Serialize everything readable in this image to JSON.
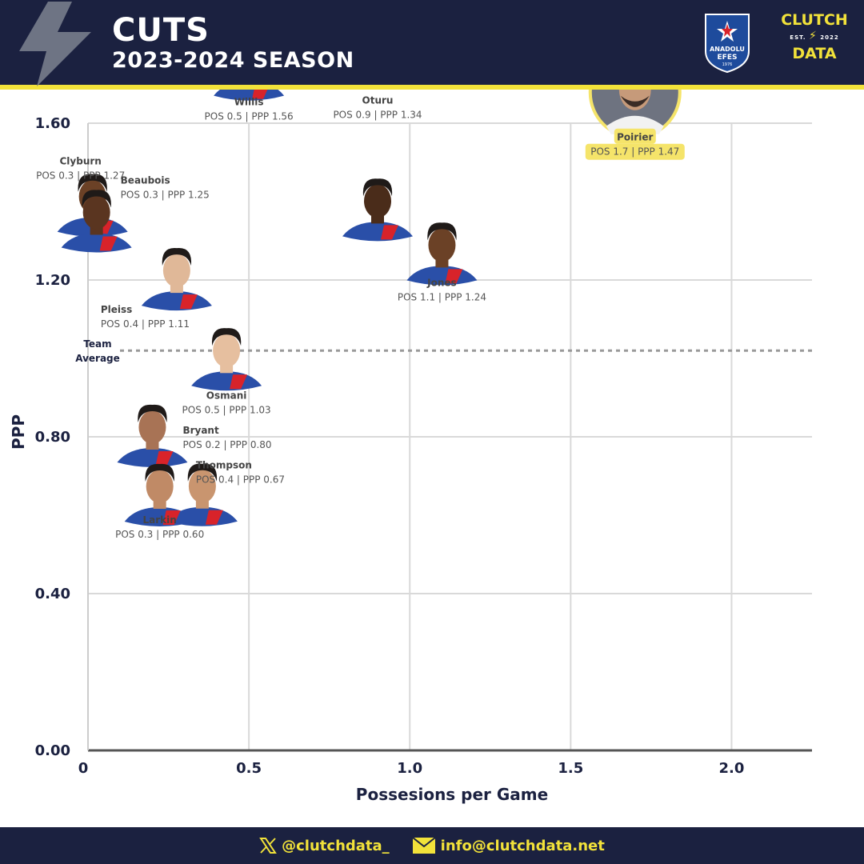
{
  "header": {
    "title": "CUTS",
    "subtitle": "2023-2024 SEASON",
    "team_logo": {
      "top": "ANADOLU",
      "bottom": "EFES",
      "year": "1976"
    },
    "brand_logo": {
      "top": "CLUTCH",
      "est_left": "EST.",
      "est_right": "2022",
      "bottom": "DATA"
    }
  },
  "footer": {
    "twitter": "@clutchdata_",
    "email": "info@clutchdata.net"
  },
  "colors": {
    "navy": "#1b2140",
    "yellow": "#f2e23a",
    "highlight": "#f5e46a",
    "jersey_blue": "#2a4fa8",
    "jersey_red": "#d8232a"
  },
  "chart_data": {
    "type": "scatter",
    "xlabel": "Possesions per Game",
    "ylabel": "PPP",
    "xlim": [
      0,
      2.25
    ],
    "ylim": [
      0,
      1.6
    ],
    "x_ticks": [
      {
        "value": 0,
        "label": "0"
      },
      {
        "value": 0.5,
        "label": "0.5"
      },
      {
        "value": 1.0,
        "label": "1.0"
      },
      {
        "value": 1.5,
        "label": "1.5"
      },
      {
        "value": 2.0,
        "label": "2.0"
      }
    ],
    "y_ticks": [
      {
        "value": 0,
        "label": "0.00"
      },
      {
        "value": 0.4,
        "label": "0.40"
      },
      {
        "value": 0.8,
        "label": "0.80"
      },
      {
        "value": 1.2,
        "label": "1.20"
      },
      {
        "value": 1.6,
        "label": "1.60"
      }
    ],
    "grid": true,
    "reference_line": {
      "label": "Team Average",
      "y": 1.02
    },
    "players": [
      {
        "name": "Willis",
        "pos": 0.5,
        "ppp": 1.56,
        "label": "POS 0.5 | PPP 1.56",
        "highlight": false
      },
      {
        "name": "Clyburn",
        "pos": 0.3,
        "ppp": 1.27,
        "label": "POS 0.3 | PPP 1.27",
        "highlight": false
      },
      {
        "name": "Beaubois",
        "pos": 0.3,
        "ppp": 1.25,
        "label": "POS 0.3 | PPP 1.25",
        "highlight": false
      },
      {
        "name": "Oturu",
        "pos": 0.9,
        "ppp": 1.34,
        "label": "POS 0.9 | PPP 1.34",
        "highlight": false
      },
      {
        "name": "Jones",
        "pos": 1.1,
        "ppp": 1.24,
        "label": "POS 1.1 | PPP 1.24",
        "highlight": false
      },
      {
        "name": "Poirier",
        "pos": 1.7,
        "ppp": 1.47,
        "label": "POS 1.7 | PPP 1.47",
        "highlight": true
      },
      {
        "name": "Pleiss",
        "pos": 0.4,
        "ppp": 1.11,
        "label": "POS 0.4 | PPP 1.11",
        "highlight": false
      },
      {
        "name": "Osmani",
        "pos": 0.5,
        "ppp": 1.03,
        "label": "POS 0.5 | PPP 1.03",
        "highlight": false
      },
      {
        "name": "Bryant",
        "pos": 0.2,
        "ppp": 0.8,
        "label": "POS 0.2 | PPP 0.80",
        "highlight": false
      },
      {
        "name": "Thompson",
        "pos": 0.4,
        "ppp": 0.67,
        "label": "POS 0.4 | PPP 0.67",
        "highlight": false
      },
      {
        "name": "Larkin",
        "pos": 0.3,
        "ppp": 0.6,
        "label": "POS 0.3 | PPP 0.60",
        "highlight": false
      }
    ]
  }
}
